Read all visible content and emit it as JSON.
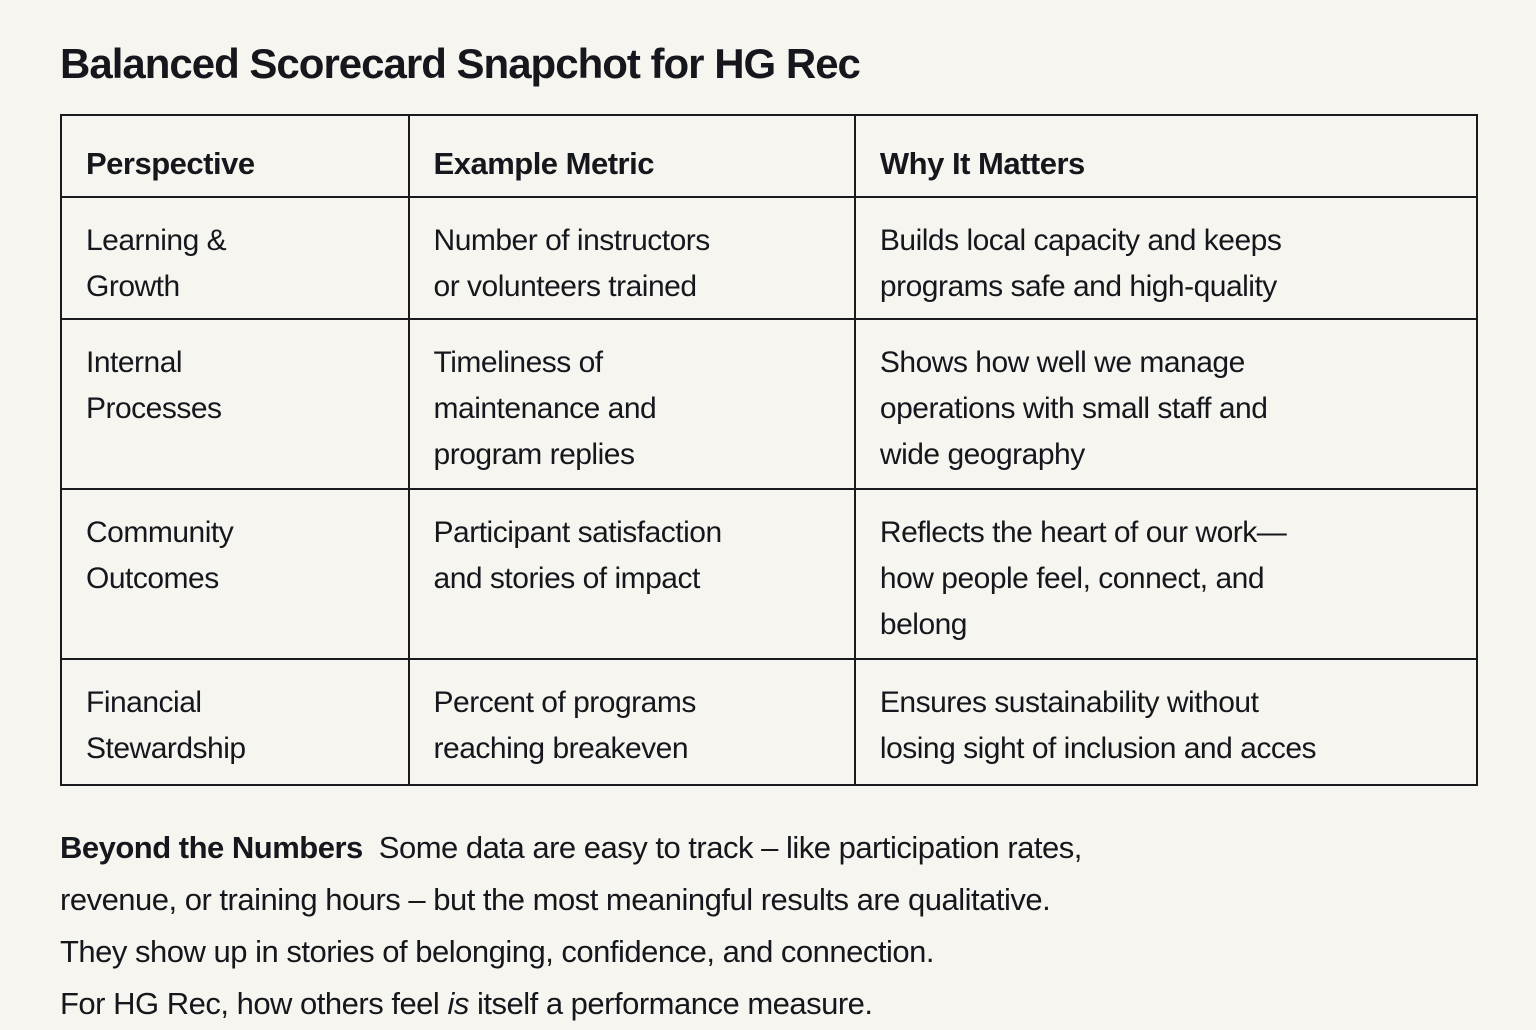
{
  "title": "Balanced Scorecard Snapchot for HG Rec",
  "table": {
    "headers": [
      "Perspective",
      "Example Metric",
      "Why It Matters"
    ],
    "rows": [
      {
        "perspective": [
          "Learning &",
          "Growth"
        ],
        "metric": [
          "Number of instructors",
          "or volunteers trained"
        ],
        "why": [
          "Builds local capacity and keeps",
          "programs safe and high-quality"
        ]
      },
      {
        "perspective": [
          "Internal",
          "Processes"
        ],
        "metric": [
          "Timeliness of",
          "maintenance and",
          "program replies"
        ],
        "why": [
          "Shows how well we manage",
          "operations with small staff and",
          "wide geography"
        ]
      },
      {
        "perspective": [
          "Community",
          "Outcomes"
        ],
        "metric": [
          "Participant satisfaction",
          "and stories of impact"
        ],
        "why": [
          "Reflects the heart of our work—",
          "how people feel, connect, and",
          "belong"
        ]
      },
      {
        "perspective": [
          "Financial",
          "Stewardship"
        ],
        "metric": [
          "Percent of programs",
          "reaching breakeven"
        ],
        "why": [
          "Ensures sustainability without",
          "losing sight of inclusion and acces"
        ]
      }
    ]
  },
  "footer": {
    "bold_label": "Beyond the Numbers",
    "line1_rest": "Some data are easy to track – like participation rates,",
    "line2": "revenue, or training hours – but the most meaningful results are qualitative.",
    "line3": "They show up in stories of belonging, confidence, and connection.",
    "line4_before_italic": "For HG Rec, how others feel",
    "line4_italic": "is",
    "line4_after_italic": "itself a performance measure."
  },
  "colors": {
    "background": "#f7f5ef",
    "text": "#15171d",
    "border": "#191a1d"
  }
}
